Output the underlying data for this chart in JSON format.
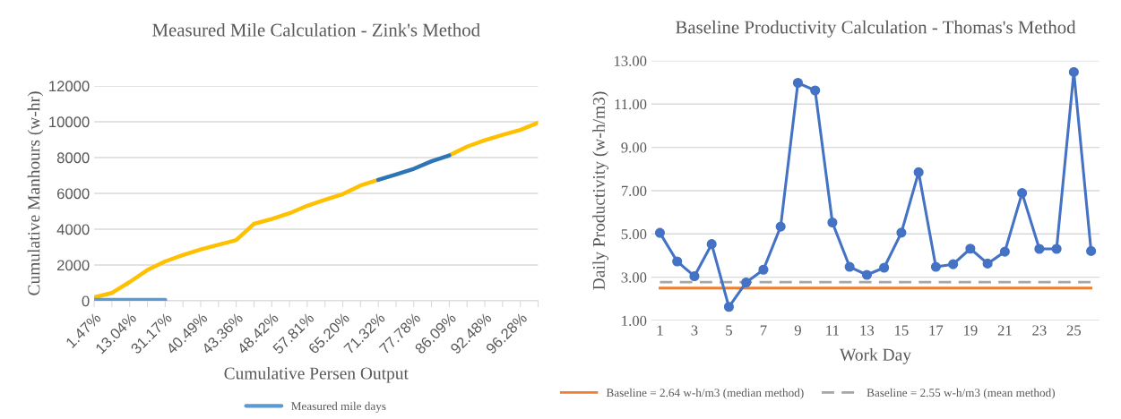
{
  "chart_data": [
    {
      "type": "line",
      "title": "Measured Mile Calculation - Zink's Method",
      "xlabel": "Cumulative Persen Output",
      "ylabel": "Cumulative Manhours (w-hr)",
      "categories": [
        "1.47%",
        null,
        "13.04%",
        null,
        "31.17%",
        null,
        "40.49%",
        null,
        "43.36%",
        null,
        "48.42%",
        null,
        "57.81%",
        null,
        "65.20%",
        null,
        "71.32%",
        null,
        "77.78%",
        null,
        "86.09%",
        null,
        "92.48%",
        null,
        "96.28%",
        null
      ],
      "series": [
        {
          "color": "#ffc000",
          "values": [
            200,
            440,
            1050,
            1720,
            2200,
            2560,
            2870,
            3130,
            3390,
            4300,
            4570,
            4890,
            5310,
            5640,
            5960,
            6440,
            6750,
            null,
            null,
            null,
            8120,
            8610,
            8970,
            9270,
            9540,
            9940
          ]
        },
        {
          "color": "#2e75b6",
          "values": [
            null,
            null,
            null,
            null,
            null,
            null,
            null,
            null,
            null,
            null,
            null,
            null,
            null,
            null,
            null,
            null,
            6750,
            7050,
            7370,
            7790,
            8120,
            null,
            null,
            null,
            null,
            null
          ]
        },
        {
          "name": "Measured mile days",
          "color": "#5b9bd5",
          "values": [
            50,
            50,
            50,
            50,
            50,
            null,
            null,
            null,
            null,
            null,
            null,
            null,
            null,
            null,
            null,
            null,
            null,
            null,
            null,
            null,
            null,
            null,
            null,
            null,
            null,
            null
          ]
        }
      ],
      "ylim": [
        0,
        12000
      ],
      "yticks": [
        0,
        2000,
        4000,
        6000,
        8000,
        10000,
        12000
      ],
      "grid": "y",
      "legend": "bottom",
      "marker": "none",
      "line_style": "solid"
    },
    {
      "type": "line",
      "title": "Baseline Productivity Calculation - Thomas's Method",
      "xlabel": "Work Day",
      "ylabel": "Daily Productivity (w-h/m3)",
      "categories": [
        "1",
        null,
        "3",
        null,
        "5",
        null,
        "7",
        null,
        "9",
        null,
        "11",
        null,
        "13",
        null,
        "15",
        null,
        "17",
        null,
        "19",
        null,
        "21",
        null,
        "23",
        null,
        "25",
        null
      ],
      "series": [
        {
          "color": "#4472c4",
          "values": [
            5.05,
            3.73,
            3.05,
            4.53,
            1.63,
            2.76,
            3.35,
            5.34,
            11.98,
            11.63,
            5.53,
            3.48,
            3.11,
            3.44,
            5.06,
            7.85,
            3.48,
            3.6,
            4.32,
            3.63,
            4.18,
            6.89,
            4.31,
            4.31,
            12.48,
            4.21
          ]
        }
      ],
      "ref_lines": [
        {
          "axis": "y",
          "value": 2.5,
          "label": "Baseline = 2.64 w-h/m3 (median method)",
          "color": "#ed7d31",
          "line_style": "solid"
        },
        {
          "axis": "y",
          "value": 2.77,
          "label": "Baseline = 2.55 w-h/m3 (mean method)",
          "color": "#a5a5a5",
          "line_style": "dashed"
        }
      ],
      "ylim": [
        1,
        13
      ],
      "yticks": [
        {
          "value": 1,
          "label": "1.00"
        },
        {
          "value": 3,
          "label": "3.00"
        },
        {
          "value": 5,
          "label": "5.00"
        },
        {
          "value": 7,
          "label": "7.00"
        },
        {
          "value": 9,
          "label": "9.00"
        },
        {
          "value": 11,
          "label": "11.00"
        },
        {
          "value": 13,
          "label": "13.00"
        }
      ],
      "grid": "y",
      "legend": "bottom",
      "marker": "circle",
      "line_style": "solid"
    }
  ]
}
